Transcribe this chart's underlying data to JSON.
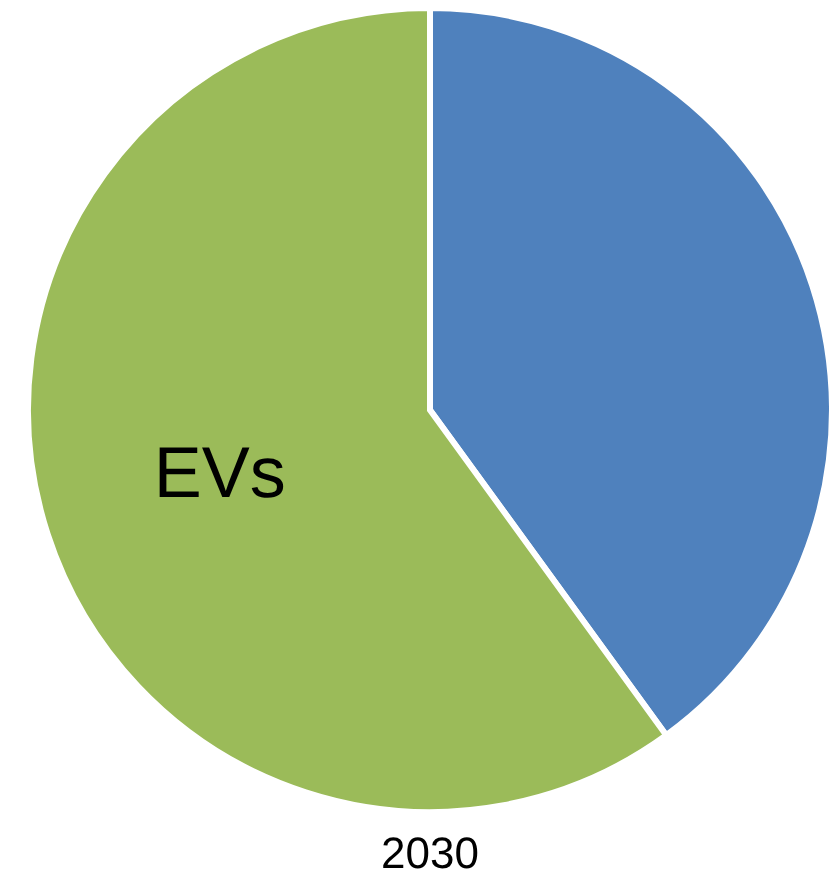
{
  "chart_data": {
    "type": "pie",
    "title": "2030",
    "categories": [
      null,
      "EVs"
    ],
    "values": [
      40,
      60
    ],
    "colors": [
      "#4f81bd",
      "#9bbb59"
    ]
  }
}
